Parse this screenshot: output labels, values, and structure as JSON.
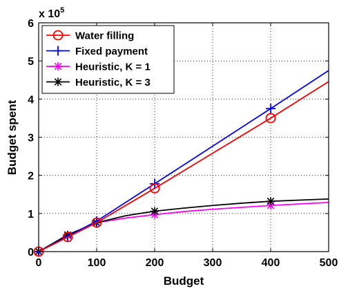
{
  "chart_data": {
    "type": "line",
    "xlabel": "Budget",
    "ylabel": "Budget spent",
    "y_multiplier_label": "x 10",
    "y_multiplier_exponent": "5",
    "xlim": [
      0,
      500
    ],
    "ylim": [
      0,
      6
    ],
    "xticks": [
      0,
      100,
      200,
      300,
      400,
      500
    ],
    "yticks": [
      0,
      1,
      2,
      3,
      4,
      5,
      6
    ],
    "grid": true,
    "legend_position": "top-left",
    "series": [
      {
        "name": "Water filling",
        "color": "#ff0000",
        "marker": "circle",
        "x": [
          0,
          50,
          100,
          200,
          400,
          500
        ],
        "y": [
          0,
          0.38,
          0.76,
          1.66,
          3.5,
          4.46
        ],
        "marker_x": [
          0,
          50,
          100,
          200,
          400
        ]
      },
      {
        "name": "Fixed payment",
        "color": "#0000ff",
        "marker": "plus",
        "x": [
          0,
          50,
          100,
          200,
          400,
          500
        ],
        "y": [
          0,
          0.4,
          0.8,
          1.78,
          3.75,
          4.75
        ],
        "marker_x": [
          0,
          50,
          100,
          200,
          400
        ]
      },
      {
        "name": "Heuristic, K = 1",
        "color": "#ff00ff",
        "marker": "asterisk",
        "x": [
          0,
          50,
          100,
          150,
          200,
          250,
          300,
          350,
          400,
          450,
          500
        ],
        "y": [
          0,
          0.42,
          0.76,
          0.88,
          0.97,
          1.05,
          1.11,
          1.16,
          1.21,
          1.25,
          1.29
        ],
        "marker_x": [
          0,
          50,
          100,
          200,
          400
        ]
      },
      {
        "name": "Heuristic, K = 3",
        "color": "#000000",
        "marker": "asterisk",
        "x": [
          0,
          50,
          100,
          150,
          200,
          250,
          300,
          350,
          400,
          450,
          500
        ],
        "y": [
          0,
          0.44,
          0.76,
          0.94,
          1.06,
          1.14,
          1.21,
          1.27,
          1.32,
          1.35,
          1.38
        ],
        "marker_x": [
          0,
          50,
          100,
          200,
          400
        ]
      }
    ]
  }
}
